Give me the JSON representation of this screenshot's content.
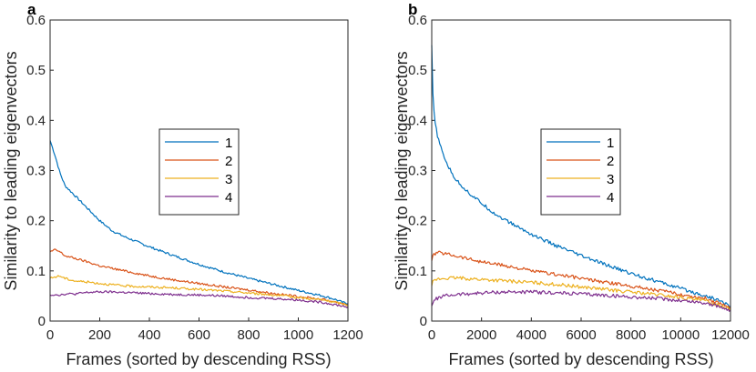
{
  "colors": {
    "series1": "#0072BD",
    "series2": "#D95319",
    "series3": "#EDB120",
    "series4": "#7E2F8E",
    "axis": "#262626"
  },
  "chart_data": [
    {
      "panel_label": "a",
      "type": "line",
      "xlabel": "Frames (sorted by descending RSS)",
      "ylabel": "Similarity to leading eigenvectors",
      "xlim": [
        0,
        1200
      ],
      "ylim": [
        0,
        0.6
      ],
      "xticks": [
        0,
        200,
        400,
        600,
        800,
        1000,
        1200
      ],
      "xtick_labels": [
        "0",
        "200",
        "400",
        "600",
        "800",
        "1000",
        "1200"
      ],
      "yticks": [
        0,
        0.1,
        0.2,
        0.3,
        0.4,
        0.5,
        0.6
      ],
      "ytick_labels": [
        "0",
        "0.1",
        "0.2",
        "0.3",
        "0.4",
        "0.5",
        "0.6"
      ],
      "legend_position": "center",
      "series": [
        {
          "name": "1",
          "x": [
            0,
            20,
            40,
            60,
            80,
            100,
            130,
            160,
            200,
            250,
            300,
            350,
            400,
            500,
            600,
            700,
            800,
            900,
            1000,
            1100,
            1150,
            1180,
            1200
          ],
          "values": [
            0.36,
            0.33,
            0.295,
            0.27,
            0.26,
            0.25,
            0.235,
            0.22,
            0.2,
            0.18,
            0.168,
            0.158,
            0.148,
            0.13,
            0.113,
            0.098,
            0.085,
            0.073,
            0.061,
            0.05,
            0.043,
            0.037,
            0.035
          ]
        },
        {
          "name": "2",
          "x": [
            0,
            20,
            40,
            60,
            100,
            150,
            200,
            300,
            400,
            500,
            600,
            700,
            800,
            900,
            1000,
            1100,
            1200
          ],
          "values": [
            0.138,
            0.142,
            0.138,
            0.13,
            0.125,
            0.118,
            0.11,
            0.1,
            0.09,
            0.082,
            0.075,
            0.068,
            0.062,
            0.055,
            0.049,
            0.043,
            0.033
          ]
        },
        {
          "name": "3",
          "x": [
            0,
            20,
            40,
            60,
            100,
            150,
            200,
            300,
            400,
            500,
            600,
            700,
            800,
            900,
            1000,
            1100,
            1200
          ],
          "values": [
            0.085,
            0.088,
            0.09,
            0.085,
            0.08,
            0.078,
            0.075,
            0.07,
            0.068,
            0.066,
            0.063,
            0.06,
            0.056,
            0.052,
            0.047,
            0.042,
            0.032
          ]
        },
        {
          "name": "4",
          "x": [
            0,
            20,
            40,
            60,
            100,
            150,
            200,
            250,
            300,
            400,
            500,
            600,
            700,
            800,
            900,
            1000,
            1100,
            1200
          ],
          "values": [
            0.052,
            0.053,
            0.052,
            0.054,
            0.054,
            0.057,
            0.058,
            0.058,
            0.057,
            0.055,
            0.053,
            0.052,
            0.05,
            0.047,
            0.045,
            0.042,
            0.037,
            0.028
          ]
        }
      ]
    },
    {
      "panel_label": "b",
      "type": "line",
      "xlabel": "Frames (sorted by descending RSS)",
      "ylabel": "Similarity to leading eigenvectors",
      "xlim": [
        0,
        12000
      ],
      "ylim": [
        0,
        0.6
      ],
      "xticks": [
        0,
        2000,
        4000,
        6000,
        8000,
        10000,
        12000
      ],
      "xtick_labels": [
        "0",
        "2000",
        "4000",
        "6000",
        "8000",
        "10000",
        "12000"
      ],
      "yticks": [
        0,
        0.1,
        0.2,
        0.3,
        0.4,
        0.5,
        0.6
      ],
      "ytick_labels": [
        "0",
        "0.1",
        "0.2",
        "0.3",
        "0.4",
        "0.5",
        "0.6"
      ],
      "legend_position": "center",
      "series": [
        {
          "name": "1",
          "x": [
            0,
            30,
            80,
            150,
            250,
            400,
            600,
            800,
            1000,
            1500,
            2000,
            2500,
            3000,
            4000,
            5000,
            6000,
            7000,
            8000,
            9000,
            10000,
            11000,
            11500,
            12000
          ],
          "values": [
            0.55,
            0.47,
            0.42,
            0.39,
            0.365,
            0.34,
            0.315,
            0.295,
            0.28,
            0.255,
            0.235,
            0.215,
            0.2,
            0.173,
            0.15,
            0.13,
            0.112,
            0.095,
            0.08,
            0.065,
            0.05,
            0.042,
            0.03
          ]
        },
        {
          "name": "2",
          "x": [
            0,
            50,
            200,
            500,
            1000,
            2000,
            3000,
            4000,
            5000,
            6000,
            7000,
            8000,
            9000,
            10000,
            11000,
            12000
          ],
          "values": [
            0.12,
            0.13,
            0.137,
            0.135,
            0.13,
            0.118,
            0.11,
            0.1,
            0.093,
            0.085,
            0.077,
            0.07,
            0.062,
            0.053,
            0.045,
            0.028
          ]
        },
        {
          "name": "3",
          "x": [
            0,
            50,
            200,
            500,
            1000,
            2000,
            3000,
            4000,
            5000,
            6000,
            7000,
            8000,
            9000,
            10000,
            11000,
            12000
          ],
          "values": [
            0.07,
            0.078,
            0.083,
            0.085,
            0.086,
            0.083,
            0.08,
            0.077,
            0.073,
            0.068,
            0.063,
            0.058,
            0.053,
            0.047,
            0.04,
            0.025
          ]
        },
        {
          "name": "4",
          "x": [
            0,
            50,
            200,
            500,
            1000,
            2000,
            3000,
            4000,
            5000,
            6000,
            7000,
            8000,
            9000,
            10000,
            11000,
            12000
          ],
          "values": [
            0.03,
            0.038,
            0.045,
            0.05,
            0.053,
            0.056,
            0.058,
            0.058,
            0.056,
            0.054,
            0.051,
            0.048,
            0.045,
            0.041,
            0.036,
            0.022
          ]
        }
      ]
    }
  ]
}
